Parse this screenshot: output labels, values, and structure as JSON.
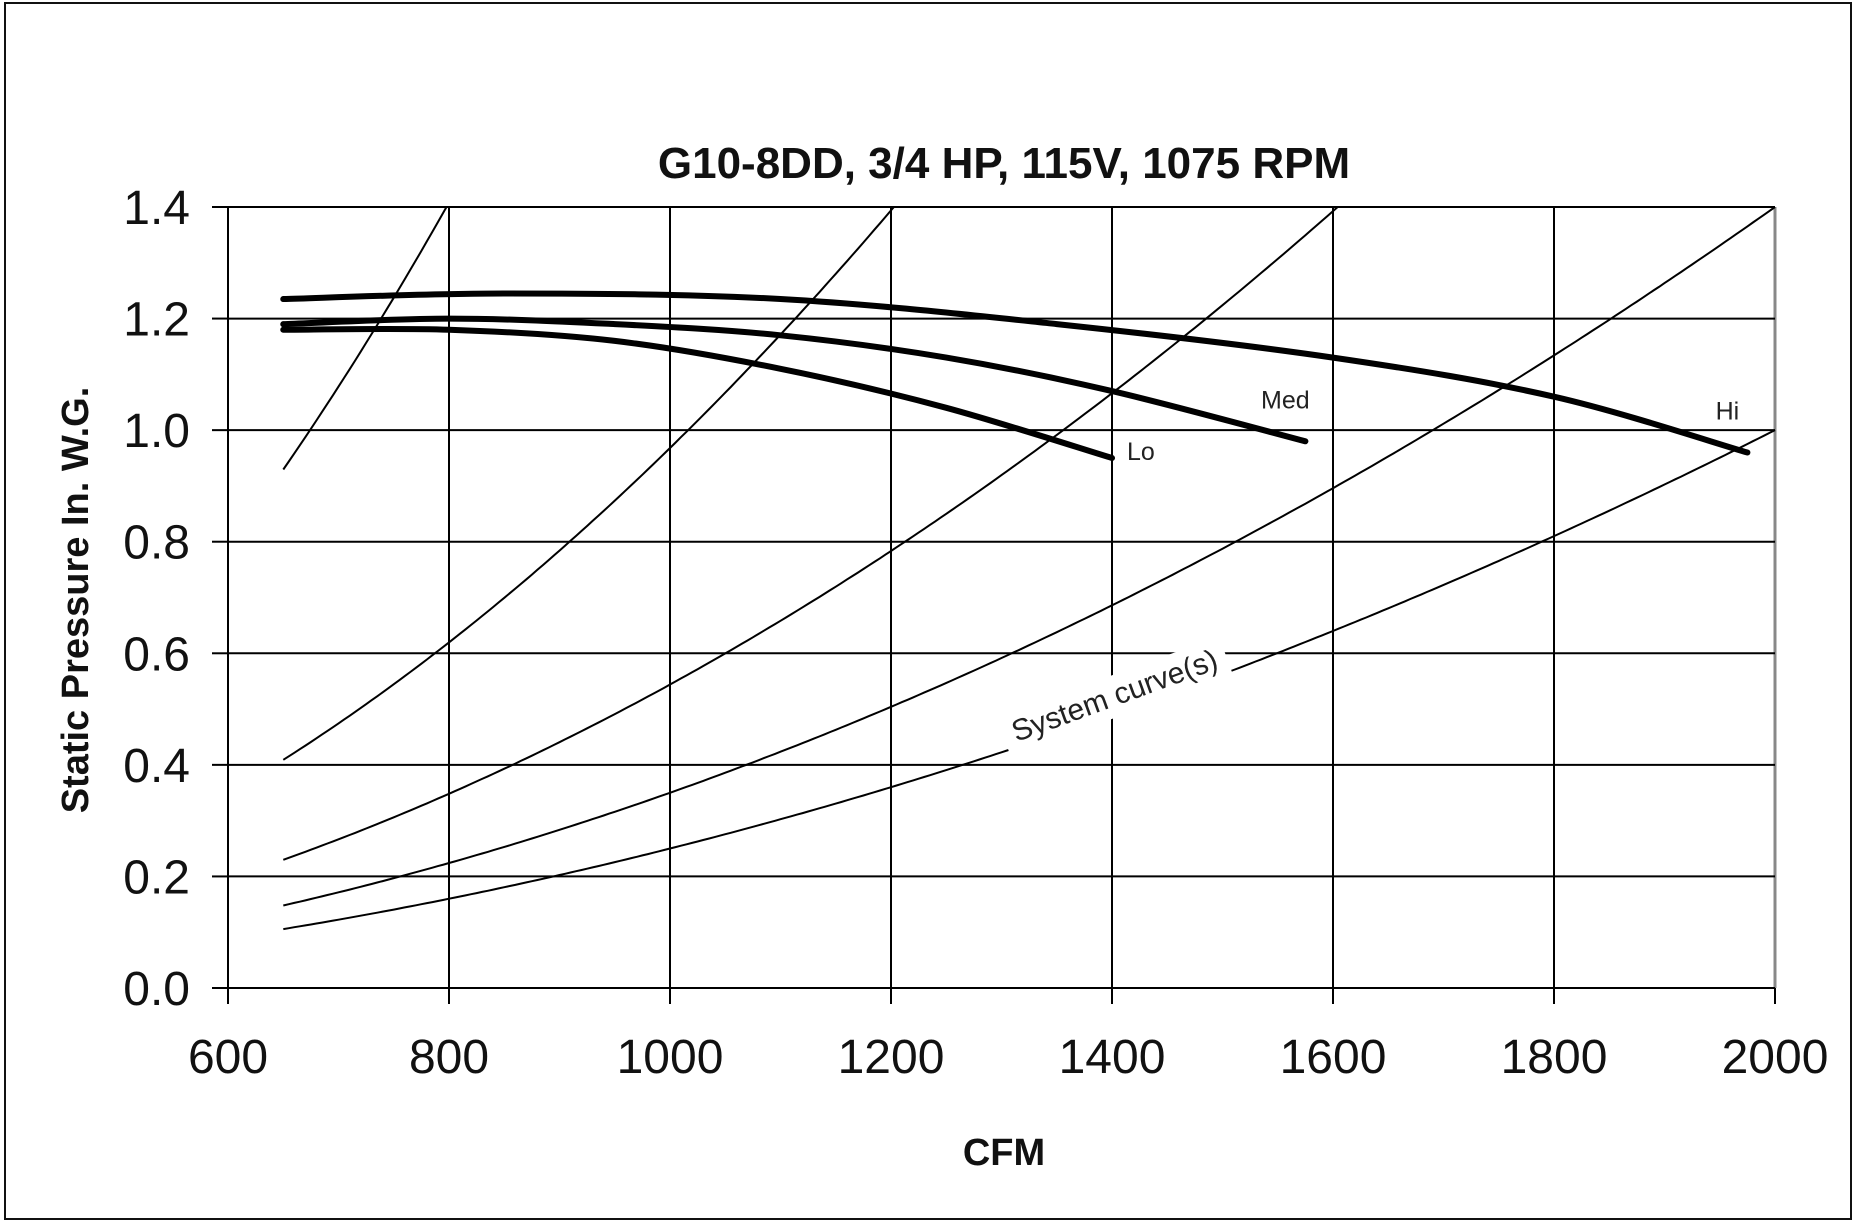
{
  "chart_data": {
    "type": "line",
    "title": "G10-8DD, 3/4 HP, 115V, 1075 RPM",
    "xlabel": "CFM",
    "ylabel": "Static Pressure In. W.G.",
    "xlim": [
      600,
      2000
    ],
    "ylim": [
      0.0,
      1.4
    ],
    "x_ticks": [
      "600",
      "800",
      "1000",
      "1200",
      "1400",
      "1600",
      "1800",
      "2000"
    ],
    "y_ticks": [
      "0.0",
      "0.2",
      "0.4",
      "0.6",
      "0.8",
      "1.0",
      "1.2",
      "1.4"
    ],
    "grid": true,
    "legend": "none",
    "series": [
      {
        "name": "Lo",
        "kind": "fan",
        "x": [
          650,
          800,
          950,
          1100,
          1250,
          1400
        ],
        "y": [
          1.18,
          1.18,
          1.16,
          1.11,
          1.04,
          0.95
        ]
      },
      {
        "name": "Med",
        "kind": "fan",
        "x": [
          650,
          800,
          950,
          1100,
          1250,
          1400,
          1575
        ],
        "y": [
          1.19,
          1.2,
          1.19,
          1.17,
          1.13,
          1.07,
          0.98
        ]
      },
      {
        "name": "Hi",
        "kind": "fan",
        "x": [
          650,
          850,
          1100,
          1350,
          1600,
          1800,
          1975
        ],
        "y": [
          1.235,
          1.245,
          1.235,
          1.19,
          1.13,
          1.06,
          0.96
        ]
      }
    ],
    "system_curve_k": [
      2.2e-06,
      9.68e-07,
      5.44e-07,
      3.5e-07,
      2.5e-07
    ],
    "annotations": {
      "system_curves": "System curve(s)"
    }
  }
}
